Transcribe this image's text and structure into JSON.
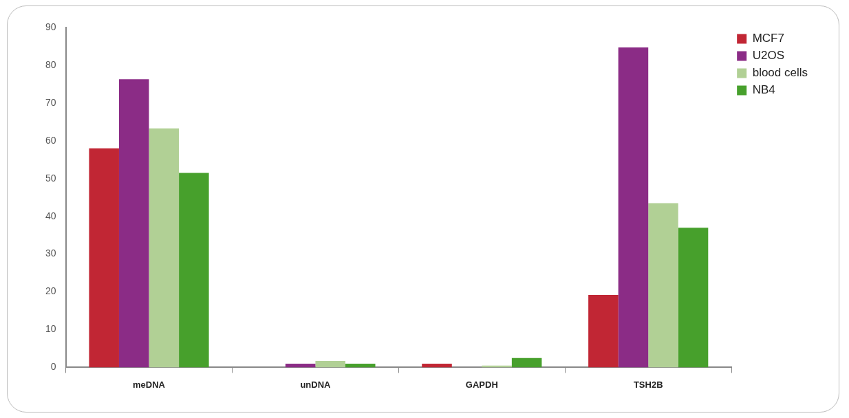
{
  "chart_data": {
    "type": "bar",
    "categories": [
      "meDNA",
      "unDNA",
      "GAPDH",
      "TSH2B"
    ],
    "series": [
      {
        "name": "MCF7",
        "color": "#c12634",
        "values": [
          58,
          0,
          1,
          19.2
        ]
      },
      {
        "name": "U2OS",
        "color": "#8b2c86",
        "values": [
          76.3,
          1,
          0,
          84.7
        ]
      },
      {
        "name": "blood cells",
        "color": "#b1d095",
        "values": [
          63.3,
          1.7,
          0.5,
          43.5
        ]
      },
      {
        "name": "NB4",
        "color": "#47a02c",
        "values": [
          51.5,
          1,
          2.5,
          37
        ]
      }
    ],
    "ylim": [
      0,
      90
    ],
    "yticks": [
      0,
      10,
      20,
      30,
      40,
      50,
      60,
      70,
      80,
      90
    ],
    "grid": false,
    "legend": "top right"
  }
}
